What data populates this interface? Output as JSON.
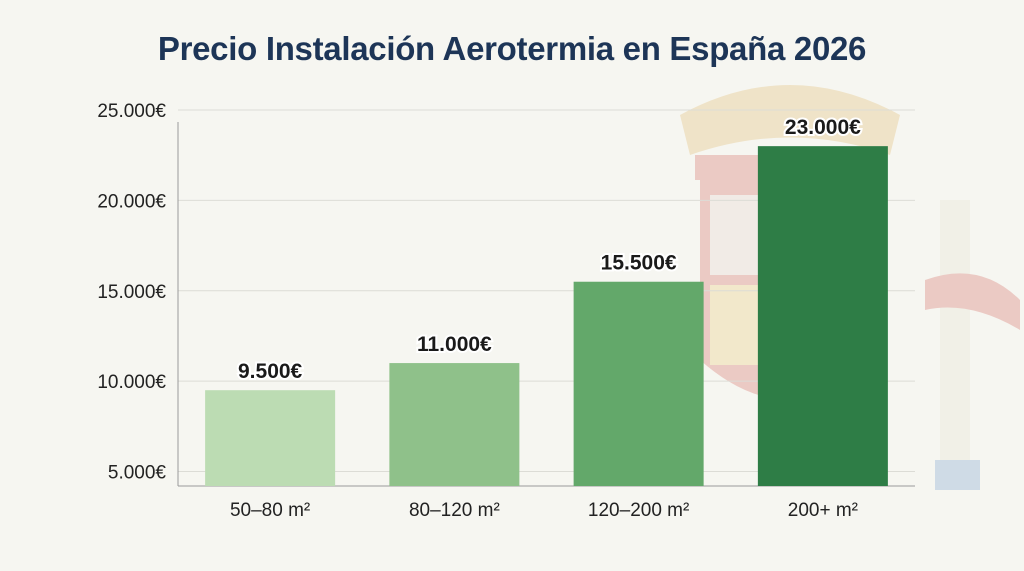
{
  "chart_data": {
    "type": "bar",
    "title": "Precio Instalación Aerotermia en España 2026",
    "categories": [
      "50–80 m²",
      "80–120 m²",
      "120–200 m²",
      "200+ m²"
    ],
    "values": [
      9500,
      11000,
      15500,
      23000
    ],
    "data_labels": [
      "9.500€",
      "11.000€",
      "15.500€",
      "23.000€"
    ],
    "bar_colors": [
      "#bcdcb3",
      "#8fc18a",
      "#63a86a",
      "#2e7d46"
    ],
    "ylim": [
      4200,
      25000
    ],
    "yticks": [
      5000,
      10000,
      15000,
      20000,
      25000
    ],
    "ytick_labels": [
      "5.000€",
      "10.000€",
      "15.000€",
      "20.000€",
      "25.000€"
    ],
    "xlabel": "",
    "ylabel": "",
    "grid": true,
    "legend": false
  },
  "colors": {
    "title": "#1d3557",
    "axis": "#9a9a9a",
    "grid": "#dcdcd6",
    "label": "#222222",
    "emblem_red": "#c8342b",
    "emblem_gold": "#d9a23a"
  }
}
